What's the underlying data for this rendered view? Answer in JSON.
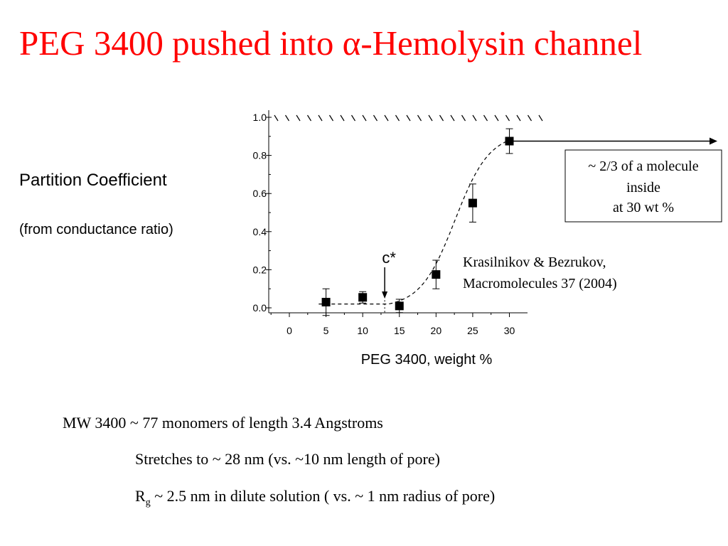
{
  "slide": {
    "title_prefix": "PEG 3400 pushed into ",
    "title_alpha": "α",
    "title_suffix": "-Hemolysin channel",
    "y_label": "Partition Coefficient",
    "y_sublabel": "(from conductance ratio)"
  },
  "chart_data": {
    "type": "scatter",
    "xlabel": "PEG 3400, weight %",
    "ylabel": "Partition Coefficient",
    "xlim": [
      -3,
      33
    ],
    "ylim": [
      0,
      1
    ],
    "x_ticks": [
      0,
      5,
      10,
      15,
      20,
      25,
      30
    ],
    "y_ticks": [
      0.0,
      0.2,
      0.4,
      0.6,
      0.8,
      1.0
    ],
    "x_tick_labels": [
      "0",
      "5",
      "10",
      "15",
      "20",
      "25",
      "30"
    ],
    "y_tick_labels": [
      "0.0",
      "0.2",
      "0.4",
      "0.6",
      "0.8",
      "1.0"
    ],
    "series": [
      {
        "x": [
          5,
          10,
          15,
          20,
          25,
          30
        ],
        "y": [
          0.03,
          0.055,
          0.01,
          0.175,
          0.55,
          0.875
        ],
        "err": [
          0.07,
          0.03,
          0.035,
          0.075,
          0.1,
          0.065
        ],
        "marker": "square",
        "color": "#000000"
      }
    ],
    "fit_curve_style": "dashed",
    "reference_line_y": 1.0,
    "c_star_label": "c*",
    "c_star_x": 13,
    "reference": {
      "line1": "Krasilnikov & Bezrukov,",
      "line2": "Macromolecules 37 (2004)"
    },
    "callout": {
      "line1": "~ 2/3 of a molecule",
      "line2": "inside",
      "line3": "at 30 wt %"
    }
  },
  "notes": {
    "line1": "MW 3400 ~ 77 monomers of length 3.4 Angstroms",
    "line2": "Stretches to ~ 28 nm (vs. ~10 nm length of pore)",
    "line3_r": "R",
    "line3_sub": "g",
    "line3_rest": " ~ 2.5 nm  in dilute solution (  vs. ~ 1 nm radius of pore)"
  }
}
